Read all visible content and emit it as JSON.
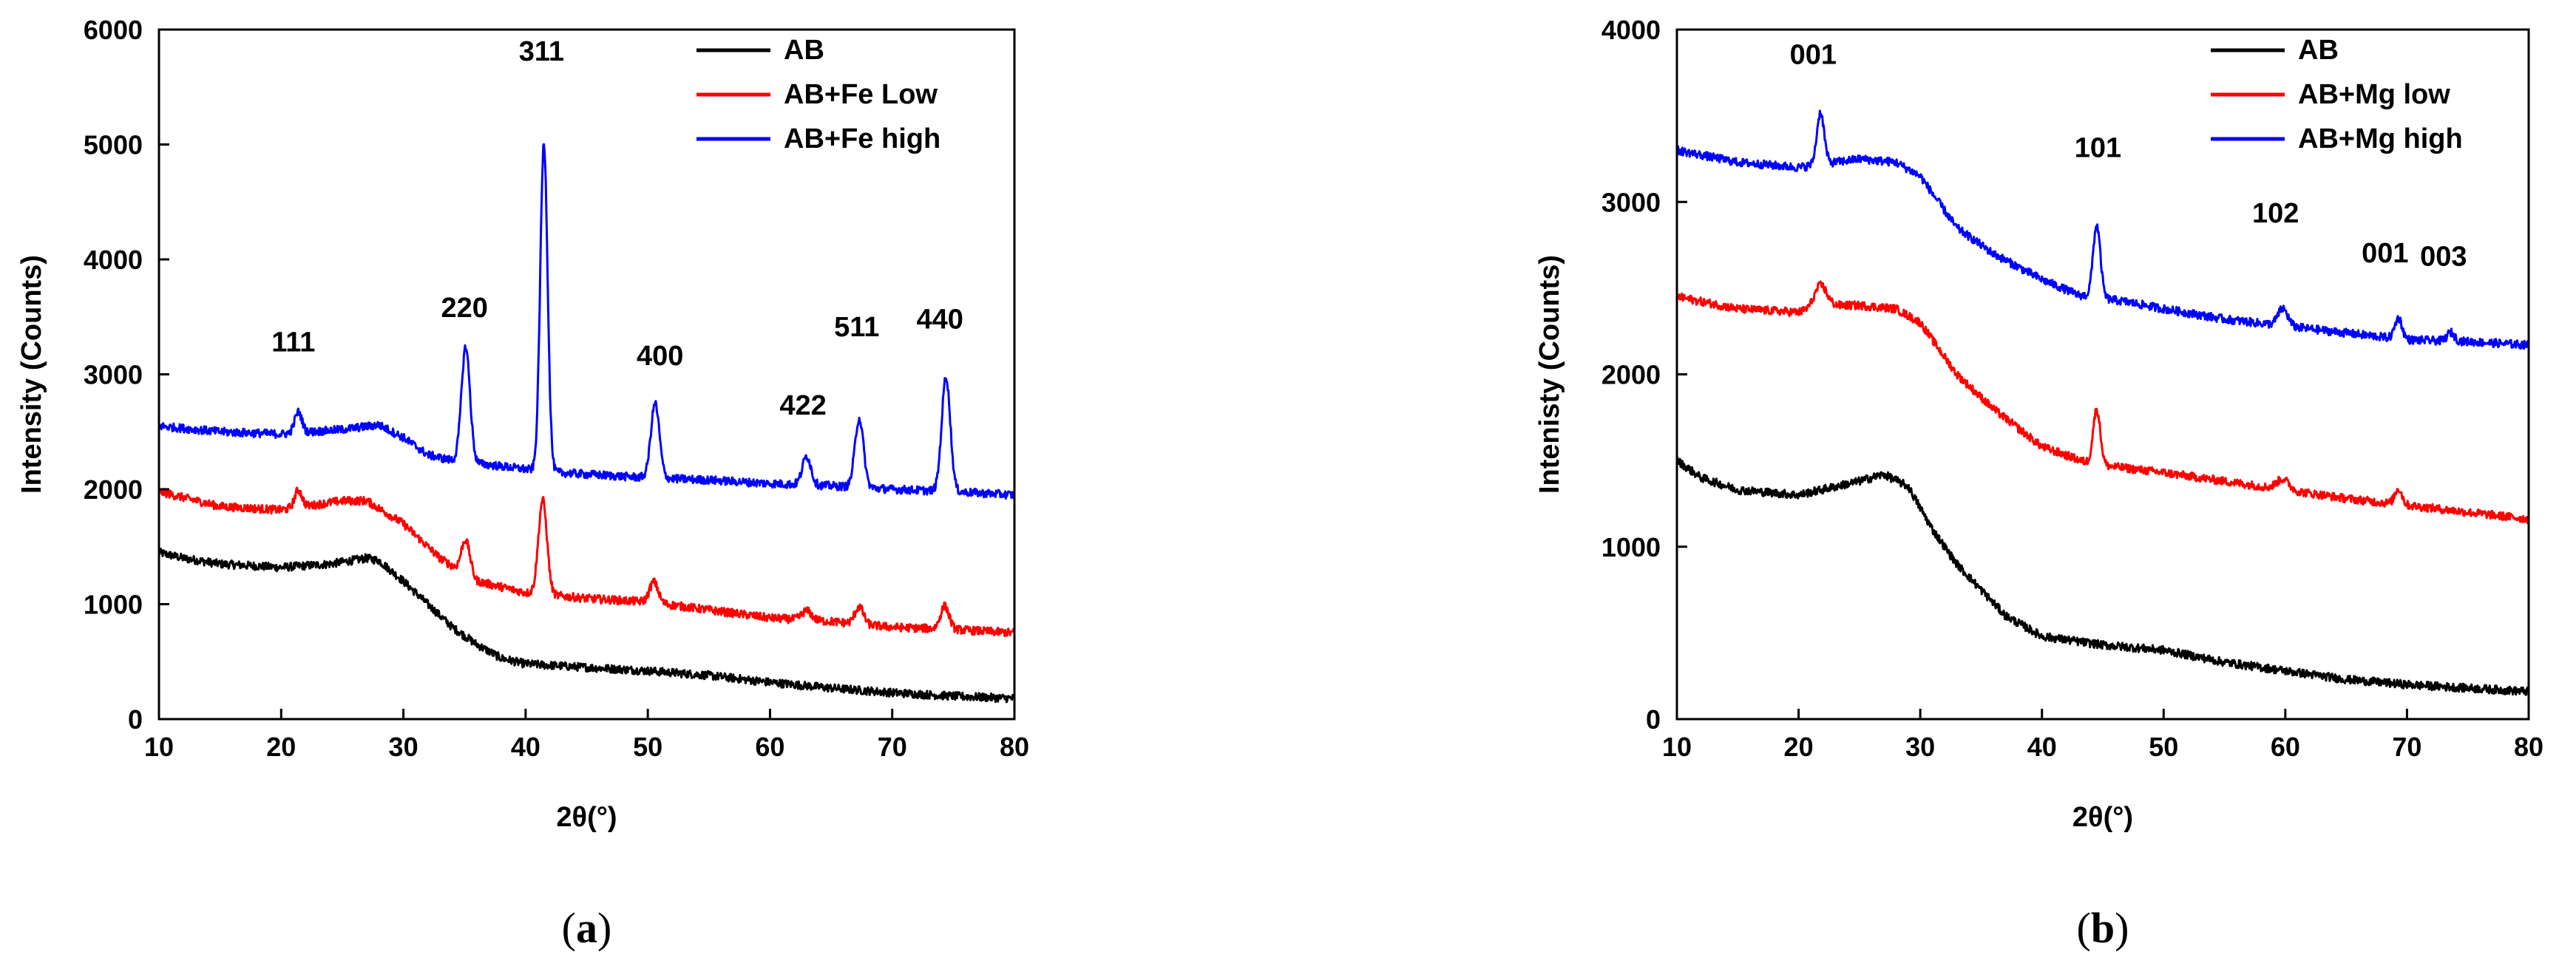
{
  "chart_data": [
    {
      "id": "a",
      "type": "line",
      "caption_open": "(",
      "caption_letter": "a",
      "caption_close": ")",
      "xlabel": "2θ(°)",
      "ylabel": "Intensity (Counts)",
      "xlim": [
        10,
        80
      ],
      "ylim": [
        0,
        6000
      ],
      "xticks": [
        10,
        20,
        30,
        40,
        50,
        60,
        70,
        80
      ],
      "yticks": [
        0,
        1000,
        2000,
        3000,
        4000,
        5000,
        6000
      ],
      "legend_position": "top-right",
      "series": [
        {
          "name": "AB",
          "color": "#000000",
          "points": [
            [
              10,
              1450
            ],
            [
              12,
              1400
            ],
            [
              15,
              1350
            ],
            [
              20,
              1320
            ],
            [
              24,
              1350
            ],
            [
              27,
              1400
            ],
            [
              28,
              1380
            ],
            [
              30,
              1200
            ],
            [
              32,
              1000
            ],
            [
              34,
              800
            ],
            [
              36,
              650
            ],
            [
              38,
              530
            ],
            [
              40,
              480
            ],
            [
              45,
              450
            ],
            [
              50,
              420
            ],
            [
              55,
              380
            ],
            [
              60,
              320
            ],
            [
              65,
              270
            ],
            [
              70,
              230
            ],
            [
              75,
              200
            ],
            [
              80,
              180
            ]
          ],
          "peaks": []
        },
        {
          "name": "AB+Fe Low",
          "color": "#ff0000",
          "points": [
            [
              10,
              1980
            ],
            [
              15,
              1850
            ],
            [
              20,
              1820
            ],
            [
              25,
              1900
            ],
            [
              27,
              1900
            ],
            [
              30,
              1700
            ],
            [
              33,
              1400
            ],
            [
              36,
              1200
            ],
            [
              40,
              1100
            ],
            [
              45,
              1050
            ],
            [
              50,
              1020
            ],
            [
              55,
              950
            ],
            [
              60,
              880
            ],
            [
              65,
              850
            ],
            [
              70,
              800
            ],
            [
              75,
              780
            ],
            [
              80,
              750
            ]
          ],
          "peaks": [
            [
              21.4,
              150,
              0.3
            ],
            [
              35.1,
              300,
              0.35
            ],
            [
              41.4,
              820,
              0.35
            ],
            [
              50.5,
              180,
              0.35
            ],
            [
              63,
              80,
              0.4
            ],
            [
              67.3,
              150,
              0.35
            ],
            [
              74.3,
              200,
              0.35
            ]
          ]
        },
        {
          "name": "AB+Fe high",
          "color": "#0000ff",
          "points": [
            [
              10,
              2550
            ],
            [
              15,
              2500
            ],
            [
              20,
              2480
            ],
            [
              25,
              2520
            ],
            [
              28,
              2560
            ],
            [
              30,
              2450
            ],
            [
              32,
              2300
            ],
            [
              34,
              2250
            ],
            [
              38,
              2200
            ],
            [
              42,
              2150
            ],
            [
              45,
              2130
            ],
            [
              50,
              2100
            ],
            [
              55,
              2080
            ],
            [
              60,
              2050
            ],
            [
              65,
              2030
            ],
            [
              70,
              2000
            ],
            [
              75,
              1980
            ],
            [
              80,
              1950
            ]
          ],
          "peaks": [
            [
              21.4,
              180,
              0.3
            ],
            [
              35.1,
              1000,
              0.35
            ],
            [
              41.5,
              2850,
              0.3
            ],
            [
              50.6,
              650,
              0.35
            ],
            [
              63,
              250,
              0.35
            ],
            [
              67.3,
              600,
              0.35
            ],
            [
              74.4,
              1000,
              0.35
            ]
          ]
        }
      ],
      "peak_labels": [
        {
          "label": "111",
          "x": 21,
          "y": 3200
        },
        {
          "label": "220",
          "x": 35,
          "y": 3500
        },
        {
          "label": "311",
          "x": 41.3,
          "y": 5730
        },
        {
          "label": "400",
          "x": 51,
          "y": 3080
        },
        {
          "label": "422",
          "x": 62.7,
          "y": 2650
        },
        {
          "label": "511",
          "x": 67.1,
          "y": 3330
        },
        {
          "label": "440",
          "x": 73.9,
          "y": 3400
        }
      ]
    },
    {
      "id": "b",
      "type": "line",
      "caption_open": "(",
      "caption_letter": "b",
      "caption_close": ")",
      "xlabel": "2θ(°)",
      "ylabel": "Intenisty (Counts)",
      "xlim": [
        10,
        80
      ],
      "ylim": [
        0,
        4000
      ],
      "xticks": [
        10,
        20,
        30,
        40,
        50,
        60,
        70,
        80
      ],
      "yticks": [
        0,
        1000,
        2000,
        3000,
        4000
      ],
      "legend_position": "top-right",
      "series": [
        {
          "name": "AB",
          "color": "#000000",
          "points": [
            [
              10,
              1500
            ],
            [
              12,
              1400
            ],
            [
              15,
              1330
            ],
            [
              20,
              1300
            ],
            [
              25,
              1380
            ],
            [
              27,
              1420
            ],
            [
              29,
              1350
            ],
            [
              31,
              1100
            ],
            [
              33,
              900
            ],
            [
              35,
              750
            ],
            [
              37,
              600
            ],
            [
              40,
              480
            ],
            [
              45,
              430
            ],
            [
              50,
              400
            ],
            [
              55,
              330
            ],
            [
              60,
              280
            ],
            [
              65,
              230
            ],
            [
              70,
              200
            ],
            [
              75,
              180
            ],
            [
              80,
              160
            ]
          ],
          "peaks": []
        },
        {
          "name": "AB+Mg low",
          "color": "#ff0000",
          "points": [
            [
              10,
              2450
            ],
            [
              15,
              2380
            ],
            [
              20,
              2360
            ],
            [
              22,
              2400
            ],
            [
              25,
              2400
            ],
            [
              28,
              2380
            ],
            [
              30,
              2300
            ],
            [
              33,
              2000
            ],
            [
              36,
              1800
            ],
            [
              40,
              1580
            ],
            [
              44,
              1480
            ],
            [
              50,
              1430
            ],
            [
              55,
              1380
            ],
            [
              60,
              1330
            ],
            [
              65,
              1280
            ],
            [
              70,
              1240
            ],
            [
              75,
              1200
            ],
            [
              80,
              1160
            ]
          ],
          "peaks": [
            [
              21.8,
              120,
              0.5
            ],
            [
              44.5,
              320,
              0.3
            ],
            [
              59.8,
              60,
              0.5
            ],
            [
              69.3,
              90,
              0.3
            ]
          ]
        },
        {
          "name": "AB+Mg high",
          "color": "#0000ff",
          "points": [
            [
              10,
              3300
            ],
            [
              15,
              3230
            ],
            [
              20,
              3200
            ],
            [
              25,
              3250
            ],
            [
              28,
              3230
            ],
            [
              30,
              3150
            ],
            [
              33,
              2850
            ],
            [
              36,
              2700
            ],
            [
              40,
              2550
            ],
            [
              43,
              2460
            ],
            [
              47,
              2420
            ],
            [
              50,
              2380
            ],
            [
              55,
              2320
            ],
            [
              60,
              2280
            ],
            [
              65,
              2240
            ],
            [
              70,
              2200
            ],
            [
              75,
              2190
            ],
            [
              80,
              2170
            ]
          ],
          "peaks": [
            [
              21.8,
              300,
              0.3
            ],
            [
              44.5,
              420,
              0.3
            ],
            [
              59.8,
              100,
              0.4
            ],
            [
              69.3,
              120,
              0.3
            ],
            [
              73.6,
              50,
              0.3
            ]
          ]
        }
      ],
      "peak_labels": [
        {
          "label": "001",
          "x": 21.2,
          "y": 3800
        },
        {
          "label": "101",
          "x": 44.6,
          "y": 3260
        },
        {
          "label": "102",
          "x": 59.2,
          "y": 2880
        },
        {
          "label": "001",
          "x": 68.2,
          "y": 2650
        },
        {
          "label": "003",
          "x": 73,
          "y": 2630
        }
      ]
    }
  ]
}
